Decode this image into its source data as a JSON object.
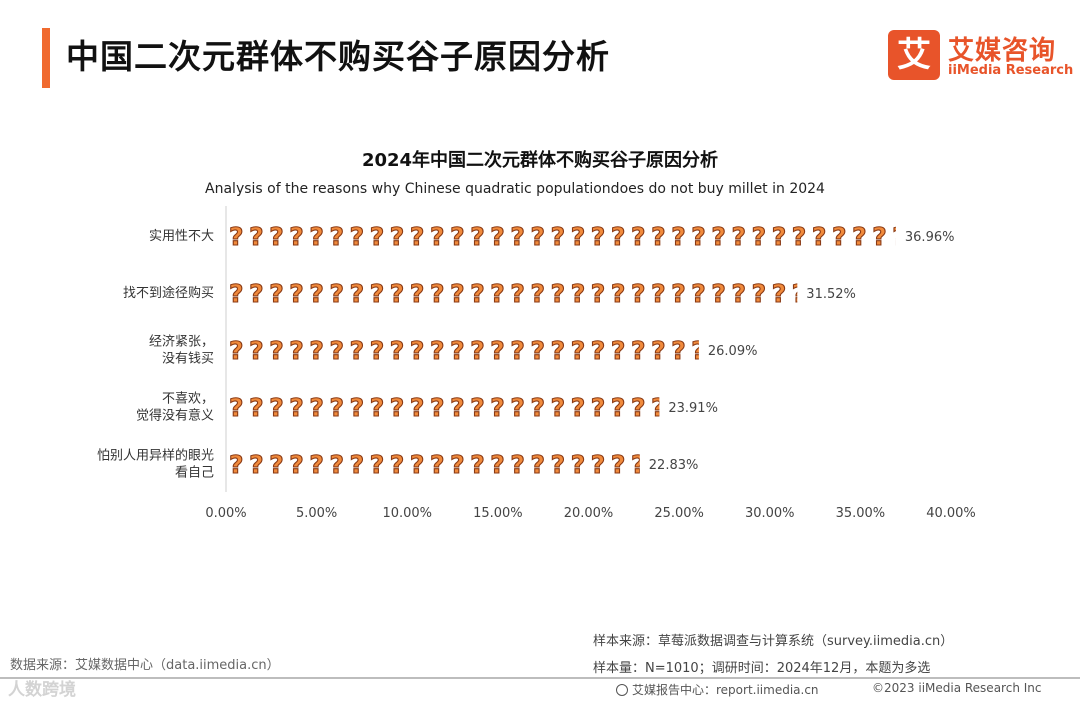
{
  "header": {
    "title": "中国二次元群体不购买谷子原因分析",
    "accent_color": "#f06a2f"
  },
  "logo": {
    "glyph": "艾",
    "cn": "艾媒咨询",
    "en": "iiMedia Research",
    "color": "#e8542a"
  },
  "chart_data": {
    "type": "bar",
    "orientation": "horizontal",
    "title": "2024年中国二次元群体不购买谷子原因分析",
    "subtitle": "Analysis of the reasons why Chinese quadratic populationdoes do not buy millet in 2024",
    "categories": [
      [
        "实用性不大"
      ],
      [
        "找不到途径购买"
      ],
      [
        "经济紧张，",
        "没有钱买"
      ],
      [
        "不喜欢，",
        "觉得没有意义"
      ],
      [
        "怕别人用异样的眼光",
        "看自己"
      ]
    ],
    "values": [
      36.96,
      31.52,
      26.09,
      23.91,
      22.83
    ],
    "value_labels": [
      "36.96%",
      "31.52%",
      "26.09%",
      "23.91%",
      "22.83%"
    ],
    "xlim": [
      0,
      40
    ],
    "x_ticks": [
      "0.00%",
      "5.00%",
      "10.00%",
      "15.00%",
      "20.00%",
      "25.00%",
      "30.00%",
      "35.00%",
      "40.00%"
    ],
    "x_tick_values": [
      0,
      5,
      10,
      15,
      20,
      25,
      30,
      35,
      40
    ],
    "bar_symbol": "?",
    "bar_color": "#f08a3c",
    "bar_outline": "#8a3a14",
    "unit": "%"
  },
  "footer": {
    "sample_source": "样本来源：草莓派数据调查与计算系统（survey.iimedia.cn）",
    "sample_size": "样本量：N=1010；调研时间：2024年12月，本题为多选",
    "data_source": "数据来源：艾媒数据中心（data.iimedia.cn）",
    "report_center": "艾媒报告中心：report.iimedia.cn",
    "copyright": "©2023  iiMedia Research  Inc",
    "watermark": "人数跨境"
  }
}
